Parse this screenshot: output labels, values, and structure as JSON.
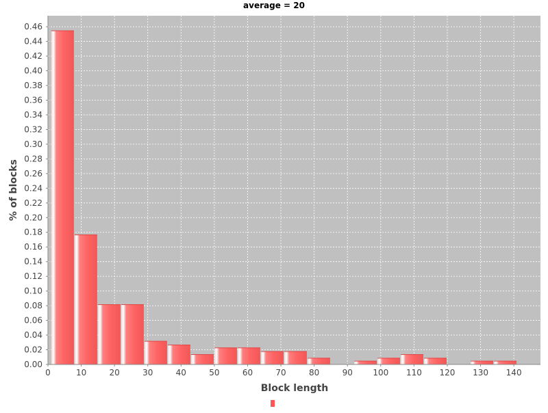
{
  "chart_data": {
    "type": "bar",
    "title": "average = 20",
    "xlabel": "Block length",
    "ylabel": "% of blocks",
    "xlim": [
      0,
      148
    ],
    "ylim": [
      0,
      0.475
    ],
    "xticks": [
      0,
      10,
      20,
      30,
      40,
      50,
      60,
      70,
      80,
      90,
      100,
      110,
      120,
      130,
      140
    ],
    "yticks": [
      0.0,
      0.02,
      0.04,
      0.06,
      0.08,
      0.1,
      0.12,
      0.14,
      0.16,
      0.18,
      0.2,
      0.22,
      0.24,
      0.26,
      0.28,
      0.3,
      0.32,
      0.34,
      0.36,
      0.38,
      0.4,
      0.42,
      0.44,
      0.46
    ],
    "grid": true,
    "bars": [
      {
        "start": 1,
        "end": 8,
        "value": 0.455
      },
      {
        "start": 8,
        "end": 15,
        "value": 0.177
      },
      {
        "start": 15,
        "end": 22,
        "value": 0.082
      },
      {
        "start": 22,
        "end": 29,
        "value": 0.082
      },
      {
        "start": 29,
        "end": 36,
        "value": 0.032
      },
      {
        "start": 36,
        "end": 43,
        "value": 0.027
      },
      {
        "start": 43,
        "end": 50,
        "value": 0.014
      },
      {
        "start": 50,
        "end": 57,
        "value": 0.023
      },
      {
        "start": 57,
        "end": 64,
        "value": 0.023
      },
      {
        "start": 64,
        "end": 71,
        "value": 0.018
      },
      {
        "start": 71,
        "end": 78,
        "value": 0.018
      },
      {
        "start": 78,
        "end": 85,
        "value": 0.009
      },
      {
        "start": 92,
        "end": 99,
        "value": 0.005
      },
      {
        "start": 99,
        "end": 106,
        "value": 0.009
      },
      {
        "start": 106,
        "end": 113,
        "value": 0.014
      },
      {
        "start": 113,
        "end": 120,
        "value": 0.009
      },
      {
        "start": 127,
        "end": 134,
        "value": 0.005
      },
      {
        "start": 134,
        "end": 141,
        "value": 0.005
      }
    ],
    "colors": {
      "plot_background": "#c0c0c0",
      "gridline": "#ffffff",
      "bar": "#ff6464",
      "bar_highlight": "#ffc8c8",
      "bar_shadow": "#e04848"
    },
    "legend": {
      "position": "bottom-center",
      "entries": [
        {
          "name": "",
          "color": "#ff5555"
        }
      ]
    }
  }
}
